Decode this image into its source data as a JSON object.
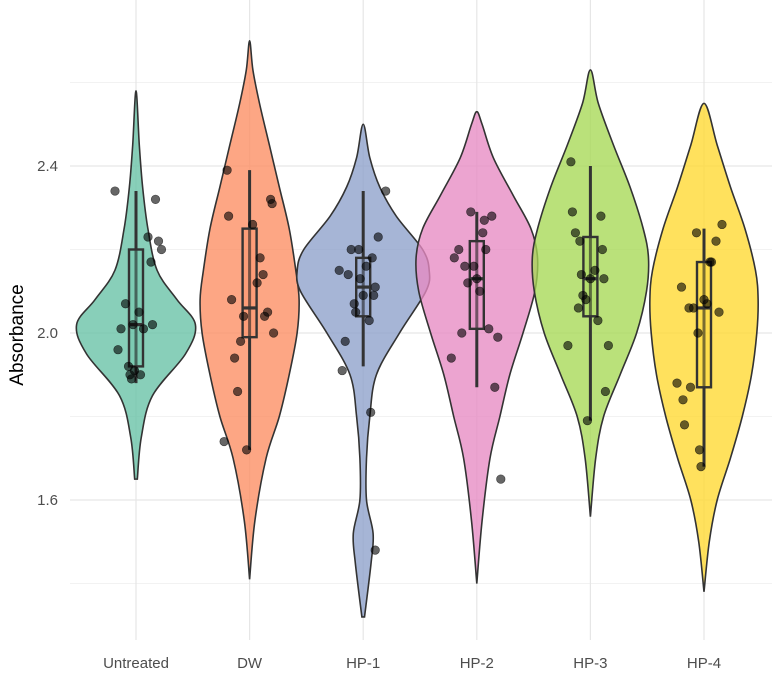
{
  "chart_data": {
    "type": "violin",
    "title": "",
    "xlabel": "",
    "ylabel": "Absorbance",
    "ylim": [
      1.28,
      2.78
    ],
    "yticks": [
      1.6,
      2.0,
      2.4
    ],
    "ytick_labels": [
      "1.6",
      "2.0",
      "2.4"
    ],
    "grid": true,
    "legend": "none",
    "categories": [
      "Untreated",
      "DW",
      "HP-1",
      "HP-2",
      "HP-3",
      "HP-4"
    ],
    "groups": [
      {
        "name": "Untreated",
        "color": "#66c2a5",
        "violin_range": [
          1.65,
          2.58
        ],
        "density": [
          [
            1.65,
            0.02
          ],
          [
            1.75,
            0.08
          ],
          [
            1.85,
            0.25
          ],
          [
            1.95,
            0.75
          ],
          [
            2.02,
            0.9
          ],
          [
            2.08,
            0.62
          ],
          [
            2.15,
            0.32
          ],
          [
            2.25,
            0.18
          ],
          [
            2.35,
            0.1
          ],
          [
            2.45,
            0.05
          ],
          [
            2.58,
            0.0
          ]
        ],
        "box": {
          "q1": 1.92,
          "median": 2.02,
          "q3": 2.2,
          "whisker_low": 1.88,
          "whisker_high": 2.34
        },
        "points": [
          [
            -0.14,
            2.34
          ],
          [
            -0.12,
            1.96
          ],
          [
            -0.1,
            2.01
          ],
          [
            -0.07,
            2.07
          ],
          [
            -0.05,
            1.92
          ],
          [
            -0.04,
            1.9
          ],
          [
            -0.03,
            1.89
          ],
          [
            -0.01,
            1.91
          ],
          [
            0.02,
            2.05
          ],
          [
            0.05,
            2.01
          ],
          [
            0.08,
            2.23
          ],
          [
            0.1,
            2.17
          ],
          [
            0.11,
            2.02
          ],
          [
            0.13,
            2.32
          ],
          [
            0.15,
            2.22
          ],
          [
            0.17,
            2.2
          ],
          [
            -0.02,
            2.02
          ],
          [
            0.03,
            1.9
          ]
        ]
      },
      {
        "name": "DW",
        "color": "#fc8d62",
        "violin_range": [
          1.41,
          2.7
        ],
        "density": [
          [
            1.41,
            0.0
          ],
          [
            1.55,
            0.08
          ],
          [
            1.7,
            0.25
          ],
          [
            1.8,
            0.45
          ],
          [
            1.9,
            0.6
          ],
          [
            2.0,
            0.72
          ],
          [
            2.08,
            0.75
          ],
          [
            2.15,
            0.7
          ],
          [
            2.25,
            0.6
          ],
          [
            2.35,
            0.45
          ],
          [
            2.45,
            0.3
          ],
          [
            2.55,
            0.15
          ],
          [
            2.63,
            0.05
          ],
          [
            2.7,
            0.0
          ]
        ],
        "box": {
          "q1": 1.99,
          "median": 2.06,
          "q3": 2.25,
          "whisker_low": 1.72,
          "whisker_high": 2.39
        },
        "points": [
          [
            -0.17,
            1.74
          ],
          [
            -0.15,
            2.39
          ],
          [
            -0.14,
            2.28
          ],
          [
            -0.12,
            2.08
          ],
          [
            -0.1,
            1.94
          ],
          [
            -0.08,
            1.86
          ],
          [
            -0.06,
            1.98
          ],
          [
            -0.04,
            2.04
          ],
          [
            -0.02,
            1.72
          ],
          [
            0.02,
            2.26
          ],
          [
            0.05,
            2.12
          ],
          [
            0.07,
            2.18
          ],
          [
            0.09,
            2.14
          ],
          [
            0.1,
            2.04
          ],
          [
            0.12,
            2.05
          ],
          [
            0.14,
            2.32
          ],
          [
            0.15,
            2.31
          ],
          [
            0.16,
            2.0
          ]
        ]
      },
      {
        "name": "HP-1",
        "color": "#8da0cb",
        "violin_range": [
          1.32,
          2.5
        ],
        "density": [
          [
            1.32,
            0.02
          ],
          [
            1.45,
            0.12
          ],
          [
            1.52,
            0.15
          ],
          [
            1.6,
            0.05
          ],
          [
            1.7,
            0.05
          ],
          [
            1.8,
            0.1
          ],
          [
            1.9,
            0.2
          ],
          [
            2.0,
            0.55
          ],
          [
            2.1,
            0.95
          ],
          [
            2.15,
            1.0
          ],
          [
            2.2,
            0.9
          ],
          [
            2.28,
            0.5
          ],
          [
            2.35,
            0.25
          ],
          [
            2.42,
            0.1
          ],
          [
            2.5,
            0.0
          ]
        ],
        "box": {
          "q1": 2.04,
          "median": 2.11,
          "q3": 2.18,
          "whisker_low": 1.92,
          "whisker_high": 2.34
        },
        "points": [
          [
            -0.16,
            2.15
          ],
          [
            -0.14,
            1.91
          ],
          [
            -0.12,
            1.98
          ],
          [
            -0.1,
            2.14
          ],
          [
            -0.08,
            2.2
          ],
          [
            -0.06,
            2.07
          ],
          [
            -0.05,
            2.05
          ],
          [
            -0.03,
            2.2
          ],
          [
            -0.02,
            2.13
          ],
          [
            0.0,
            2.09
          ],
          [
            0.02,
            2.16
          ],
          [
            0.04,
            2.03
          ],
          [
            0.05,
            1.81
          ],
          [
            0.06,
            2.18
          ],
          [
            0.07,
            2.09
          ],
          [
            0.08,
            2.11
          ],
          [
            0.1,
            2.23
          ],
          [
            0.15,
            2.34
          ],
          [
            0.08,
            1.48
          ]
        ]
      },
      {
        "name": "HP-2",
        "color": "#e78ac3",
        "violin_range": [
          1.4,
          2.53
        ],
        "density": [
          [
            1.4,
            0.0
          ],
          [
            1.55,
            0.08
          ],
          [
            1.7,
            0.2
          ],
          [
            1.8,
            0.35
          ],
          [
            1.9,
            0.5
          ],
          [
            2.0,
            0.7
          ],
          [
            2.1,
            0.88
          ],
          [
            2.18,
            0.92
          ],
          [
            2.25,
            0.82
          ],
          [
            2.33,
            0.55
          ],
          [
            2.42,
            0.25
          ],
          [
            2.5,
            0.08
          ],
          [
            2.53,
            0.0
          ]
        ],
        "box": {
          "q1": 2.01,
          "median": 2.13,
          "q3": 2.22,
          "whisker_low": 1.87,
          "whisker_high": 2.29
        },
        "points": [
          [
            -0.17,
            1.94
          ],
          [
            -0.15,
            2.18
          ],
          [
            -0.12,
            2.2
          ],
          [
            -0.1,
            2.0
          ],
          [
            -0.08,
            2.16
          ],
          [
            -0.06,
            2.12
          ],
          [
            -0.04,
            2.29
          ],
          [
            -0.02,
            2.16
          ],
          [
            0.0,
            2.13
          ],
          [
            0.02,
            2.1
          ],
          [
            0.04,
            2.24
          ],
          [
            0.05,
            2.27
          ],
          [
            0.06,
            2.2
          ],
          [
            0.08,
            2.01
          ],
          [
            0.1,
            2.28
          ],
          [
            0.12,
            1.87
          ],
          [
            0.14,
            1.99
          ],
          [
            0.16,
            1.65
          ]
        ]
      },
      {
        "name": "HP-3",
        "color": "#a6d854",
        "violin_range": [
          1.56,
          2.63
        ],
        "density": [
          [
            1.56,
            0.0
          ],
          [
            1.7,
            0.08
          ],
          [
            1.8,
            0.2
          ],
          [
            1.9,
            0.45
          ],
          [
            2.0,
            0.7
          ],
          [
            2.1,
            0.85
          ],
          [
            2.18,
            0.88
          ],
          [
            2.25,
            0.8
          ],
          [
            2.35,
            0.6
          ],
          [
            2.45,
            0.35
          ],
          [
            2.55,
            0.12
          ],
          [
            2.63,
            0.0
          ]
        ],
        "box": {
          "q1": 2.04,
          "median": 2.13,
          "q3": 2.23,
          "whisker_low": 1.79,
          "whisker_high": 2.4
        },
        "points": [
          [
            -0.15,
            1.97
          ],
          [
            -0.13,
            2.41
          ],
          [
            -0.12,
            2.29
          ],
          [
            -0.1,
            2.24
          ],
          [
            -0.08,
            2.06
          ],
          [
            -0.07,
            2.22
          ],
          [
            -0.05,
            2.09
          ],
          [
            -0.03,
            2.08
          ],
          [
            -0.02,
            1.79
          ],
          [
            0.0,
            2.13
          ],
          [
            0.03,
            2.15
          ],
          [
            0.05,
            2.03
          ],
          [
            0.07,
            2.28
          ],
          [
            0.08,
            2.2
          ],
          [
            0.09,
            2.13
          ],
          [
            0.1,
            1.86
          ],
          [
            0.12,
            1.97
          ],
          [
            -0.06,
            2.14
          ]
        ]
      },
      {
        "name": "HP-4",
        "color": "#ffd92f",
        "violin_range": [
          1.38,
          2.55
        ],
        "density": [
          [
            1.38,
            0.0
          ],
          [
            1.5,
            0.08
          ],
          [
            1.6,
            0.2
          ],
          [
            1.7,
            0.4
          ],
          [
            1.8,
            0.58
          ],
          [
            1.9,
            0.72
          ],
          [
            2.0,
            0.8
          ],
          [
            2.08,
            0.82
          ],
          [
            2.15,
            0.78
          ],
          [
            2.25,
            0.62
          ],
          [
            2.35,
            0.4
          ],
          [
            2.45,
            0.2
          ],
          [
            2.55,
            0.0
          ]
        ],
        "box": {
          "q1": 1.87,
          "median": 2.06,
          "q3": 2.17,
          "whisker_low": 1.68,
          "whisker_high": 2.25
        },
        "points": [
          [
            -0.18,
            1.88
          ],
          [
            -0.15,
            2.11
          ],
          [
            -0.14,
            1.84
          ],
          [
            -0.13,
            1.78
          ],
          [
            -0.1,
            2.06
          ],
          [
            -0.09,
            1.87
          ],
          [
            -0.07,
            2.06
          ],
          [
            -0.05,
            2.24
          ],
          [
            -0.03,
            1.72
          ],
          [
            -0.02,
            1.68
          ],
          [
            0.0,
            2.08
          ],
          [
            0.02,
            2.07
          ],
          [
            0.04,
            2.17
          ],
          [
            0.05,
            2.17
          ],
          [
            0.08,
            2.22
          ],
          [
            0.1,
            2.05
          ],
          [
            0.12,
            2.26
          ],
          [
            -0.04,
            2.0
          ]
        ]
      }
    ]
  }
}
